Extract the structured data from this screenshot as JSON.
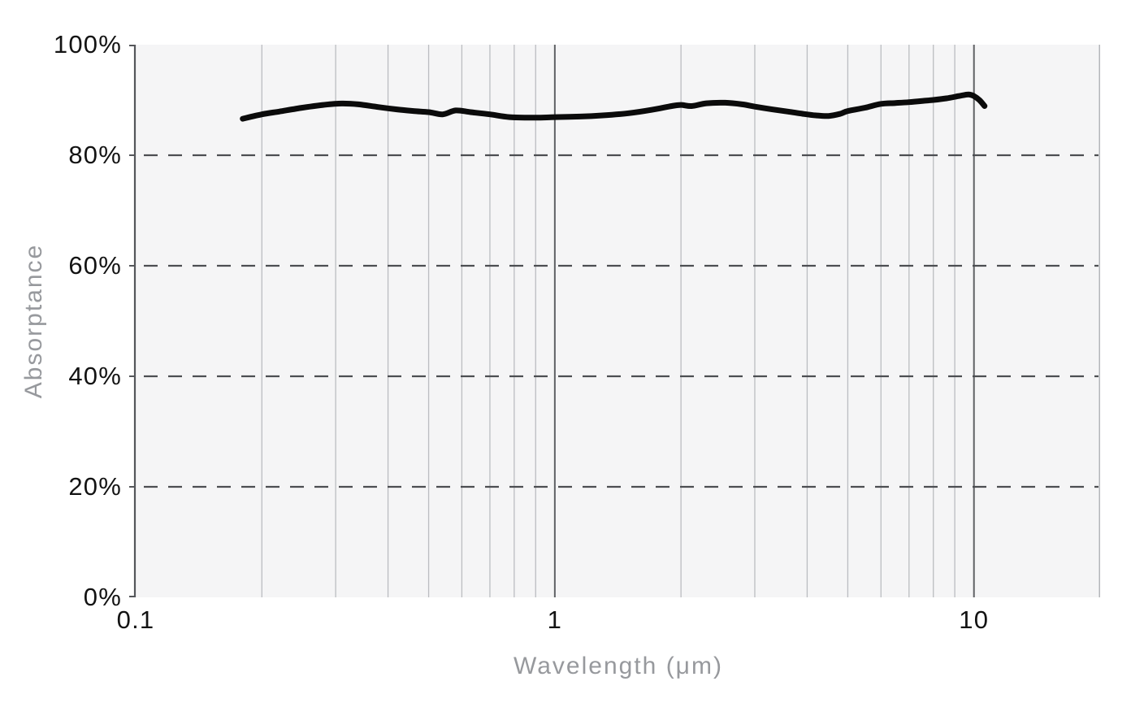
{
  "chart_data": {
    "type": "line",
    "title": "",
    "xlabel": "Wavelength (μm)",
    "ylabel": "Absorptance",
    "x_scale": "log",
    "xlim": [
      0.1,
      20
    ],
    "ylim": [
      0,
      100
    ],
    "y_unit": "%",
    "grid": true,
    "legend": "none",
    "x_ticks": [
      {
        "value": 0.1,
        "label": "0.1"
      },
      {
        "value": 1,
        "label": "1"
      },
      {
        "value": 10,
        "label": "10"
      }
    ],
    "y_ticks": [
      {
        "value": 0,
        "label": "0%"
      },
      {
        "value": 20,
        "label": "20%"
      },
      {
        "value": 40,
        "label": "40%"
      },
      {
        "value": 60,
        "label": "60%"
      },
      {
        "value": 80,
        "label": "80%"
      },
      {
        "value": 100,
        "label": "100%"
      }
    ],
    "minor_x_gridlines": [
      0.2,
      0.3,
      0.4,
      0.5,
      0.6,
      0.7,
      0.8,
      0.9,
      2,
      3,
      4,
      5,
      6,
      7,
      8,
      9
    ],
    "major_x_gridlines": [
      1,
      10
    ],
    "dashed_y_gridlines": [
      20,
      40,
      60,
      80
    ],
    "colors": {
      "line": "#0b0b0b",
      "plot_background": "#f5f5f6",
      "minor_grid": "#bbbdc1",
      "major_grid": "#5f6164",
      "dashed_grid": "#4c4e52",
      "axis": "#54565a",
      "right_border": "#b4b6ba",
      "tick_label": "#131313",
      "axis_title": "#97999d"
    },
    "series": [
      {
        "name": "Absorptance",
        "color": "#0b0b0b",
        "stroke_width": 7,
        "points": [
          [
            0.18,
            86.6
          ],
          [
            0.2,
            87.4
          ],
          [
            0.22,
            87.9
          ],
          [
            0.25,
            88.6
          ],
          [
            0.28,
            89.1
          ],
          [
            0.31,
            89.35
          ],
          [
            0.34,
            89.2
          ],
          [
            0.38,
            88.7
          ],
          [
            0.42,
            88.3
          ],
          [
            0.46,
            88.0
          ],
          [
            0.5,
            87.8
          ],
          [
            0.54,
            87.4
          ],
          [
            0.58,
            88.1
          ],
          [
            0.63,
            87.8
          ],
          [
            0.7,
            87.4
          ],
          [
            0.78,
            86.9
          ],
          [
            0.9,
            86.8
          ],
          [
            1.0,
            86.9
          ],
          [
            1.15,
            87.0
          ],
          [
            1.3,
            87.2
          ],
          [
            1.5,
            87.6
          ],
          [
            1.7,
            88.2
          ],
          [
            1.9,
            88.9
          ],
          [
            2.0,
            89.1
          ],
          [
            2.12,
            88.9
          ],
          [
            2.3,
            89.4
          ],
          [
            2.55,
            89.5
          ],
          [
            2.8,
            89.2
          ],
          [
            3.0,
            88.8
          ],
          [
            3.3,
            88.3
          ],
          [
            3.6,
            87.9
          ],
          [
            3.9,
            87.5
          ],
          [
            4.2,
            87.2
          ],
          [
            4.5,
            87.1
          ],
          [
            4.8,
            87.5
          ],
          [
            5.0,
            88.0
          ],
          [
            5.5,
            88.6
          ],
          [
            6.0,
            89.3
          ],
          [
            6.5,
            89.45
          ],
          [
            7.0,
            89.6
          ],
          [
            7.6,
            89.85
          ],
          [
            8.0,
            90.0
          ],
          [
            8.6,
            90.3
          ],
          [
            9.2,
            90.7
          ],
          [
            9.7,
            91.0
          ],
          [
            10.0,
            90.7
          ],
          [
            10.3,
            90.0
          ],
          [
            10.6,
            88.9
          ]
        ]
      }
    ]
  }
}
